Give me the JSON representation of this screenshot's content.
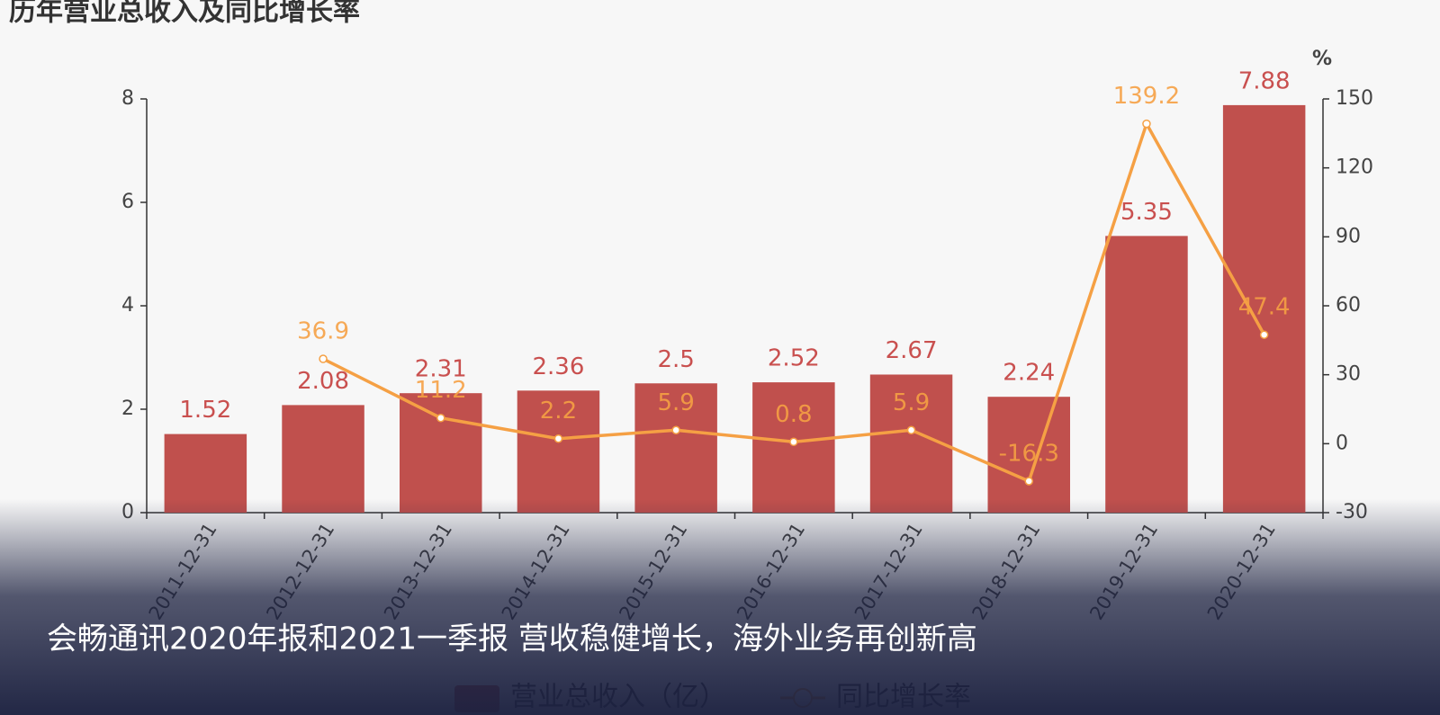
{
  "chart_data": {
    "type": "bar",
    "title": "历年营业总收入及同比增长率",
    "categories": [
      "2011-12-31",
      "2012-12-31",
      "2013-12-31",
      "2014-12-31",
      "2015-12-31",
      "2016-12-31",
      "2017-12-31",
      "2018-12-31",
      "2019-12-31",
      "2020-12-31"
    ],
    "series": [
      {
        "name": "营业总收入（亿）",
        "type": "bar",
        "color": "#c0504d",
        "values": [
          1.52,
          2.08,
          2.31,
          2.36,
          2.5,
          2.52,
          2.67,
          2.24,
          5.35,
          7.88
        ]
      },
      {
        "name": "同比增长率",
        "type": "line",
        "axis": "y2",
        "color": "#f5a044",
        "values": [
          null,
          36.9,
          11.2,
          2.2,
          5.9,
          0.8,
          5.9,
          -16.3,
          139.2,
          47.4
        ]
      }
    ],
    "ylim": [
      0,
      8
    ],
    "yticks": [
      0,
      2,
      4,
      6,
      8
    ],
    "y2lim": [
      -30,
      150
    ],
    "y2ticks": [
      -30,
      0,
      30,
      60,
      90,
      120,
      150
    ],
    "y2_label": "%",
    "legend": "bottom",
    "grid": false
  },
  "caption": "会畅通讯2020年报和2021一季报 营收稳健增长，海外业务再创新高"
}
